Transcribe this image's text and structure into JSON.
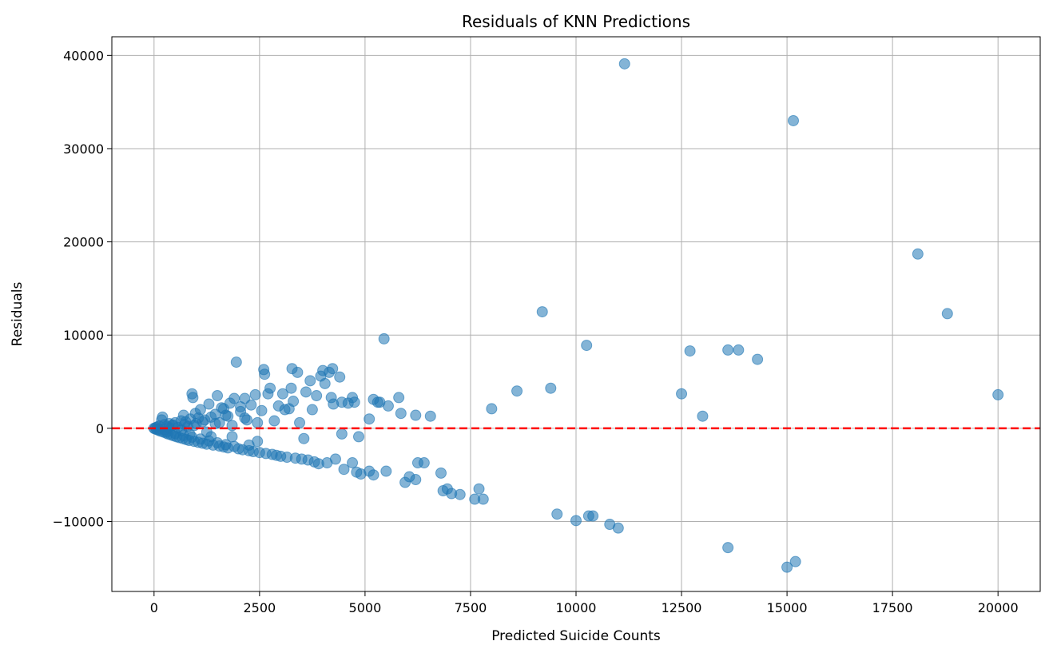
{
  "chart_data": {
    "type": "scatter",
    "title": "Residuals of KNN Predictions",
    "xlabel": "Predicted Suicide Counts",
    "ylabel": "Residuals",
    "xlim": [
      -1000,
      21000
    ],
    "ylim": [
      -17500,
      42000
    ],
    "xticks": [
      0,
      2500,
      5000,
      7500,
      10000,
      12500,
      15000,
      17500,
      20000
    ],
    "yticks": [
      -10000,
      0,
      10000,
      20000,
      30000,
      40000
    ],
    "grid": true,
    "point_color": "#1f77b4",
    "point_opacity": 0.55,
    "reference_line": {
      "y": 0,
      "color": "#ff0000",
      "style": "dashed"
    },
    "points": [
      [
        0,
        0
      ],
      [
        20,
        -50
      ],
      [
        40,
        80
      ],
      [
        60,
        -120
      ],
      [
        80,
        150
      ],
      [
        100,
        -200
      ],
      [
        120,
        250
      ],
      [
        150,
        -300
      ],
      [
        180,
        900
      ],
      [
        200,
        1200
      ],
      [
        220,
        -400
      ],
      [
        250,
        400
      ],
      [
        280,
        -500
      ],
      [
        300,
        200
      ],
      [
        330,
        -600
      ],
      [
        360,
        500
      ],
      [
        400,
        -700
      ],
      [
        430,
        300
      ],
      [
        460,
        -800
      ],
      [
        500,
        600
      ],
      [
        530,
        -900
      ],
      [
        560,
        100
      ],
      [
        600,
        -1000
      ],
      [
        640,
        800
      ],
      [
        680,
        -1100
      ],
      [
        700,
        1400
      ],
      [
        720,
        400
      ],
      [
        760,
        -1200
      ],
      [
        800,
        200
      ],
      [
        830,
        -1300
      ],
      [
        860,
        1000
      ],
      [
        900,
        3700
      ],
      [
        920,
        3300
      ],
      [
        950,
        -1400
      ],
      [
        980,
        1600
      ],
      [
        1000,
        500
      ],
      [
        1050,
        -1500
      ],
      [
        1100,
        2000
      ],
      [
        1150,
        -1600
      ],
      [
        1200,
        900
      ],
      [
        1250,
        -1700
      ],
      [
        1300,
        2600
      ],
      [
        1350,
        1200
      ],
      [
        1400,
        -1800
      ],
      [
        1450,
        500
      ],
      [
        1500,
        3500
      ],
      [
        1550,
        -1900
      ],
      [
        1600,
        2200
      ],
      [
        1650,
        -2000
      ],
      [
        1700,
        1400
      ],
      [
        1750,
        -2100
      ],
      [
        1800,
        2700
      ],
      [
        1850,
        300
      ],
      [
        1900,
        3200
      ],
      [
        1950,
        7100
      ],
      [
        2000,
        -2200
      ],
      [
        2050,
        1800
      ],
      [
        2100,
        -2300
      ],
      [
        2150,
        3200
      ],
      [
        2200,
        900
      ],
      [
        2250,
        -2400
      ],
      [
        2300,
        2500
      ],
      [
        2350,
        -2500
      ],
      [
        2400,
        3600
      ],
      [
        2450,
        600
      ],
      [
        2500,
        -2600
      ],
      [
        2550,
        1900
      ],
      [
        2600,
        6300
      ],
      [
        2620,
        5800
      ],
      [
        2650,
        -2700
      ],
      [
        2700,
        3700
      ],
      [
        2750,
        4300
      ],
      [
        2800,
        -2800
      ],
      [
        2850,
        800
      ],
      [
        2900,
        -2900
      ],
      [
        2950,
        2400
      ],
      [
        3000,
        -3000
      ],
      [
        3050,
        3700
      ],
      [
        3100,
        2000
      ],
      [
        3150,
        -3100
      ],
      [
        3200,
        2100
      ],
      [
        3250,
        4300
      ],
      [
        3270,
        6400
      ],
      [
        3300,
        2900
      ],
      [
        3350,
        -3200
      ],
      [
        3400,
        6000
      ],
      [
        3450,
        600
      ],
      [
        3500,
        -3300
      ],
      [
        3550,
        -1100
      ],
      [
        3600,
        3900
      ],
      [
        3650,
        -3400
      ],
      [
        3700,
        5100
      ],
      [
        3750,
        2000
      ],
      [
        3800,
        -3600
      ],
      [
        3850,
        3500
      ],
      [
        3900,
        -3800
      ],
      [
        3950,
        5600
      ],
      [
        4000,
        6200
      ],
      [
        4050,
        4800
      ],
      [
        4100,
        -3700
      ],
      [
        4150,
        6000
      ],
      [
        4200,
        3300
      ],
      [
        4230,
        6400
      ],
      [
        4250,
        2600
      ],
      [
        4300,
        -3300
      ],
      [
        4400,
        5500
      ],
      [
        4450,
        2800
      ],
      [
        4450,
        -600
      ],
      [
        4500,
        -4400
      ],
      [
        4600,
        2700
      ],
      [
        4700,
        -3700
      ],
      [
        4700,
        3300
      ],
      [
        4750,
        2800
      ],
      [
        4800,
        -4700
      ],
      [
        4850,
        -900
      ],
      [
        4900,
        -4900
      ],
      [
        5100,
        -4600
      ],
      [
        5100,
        1000
      ],
      [
        5200,
        3100
      ],
      [
        5200,
        -5000
      ],
      [
        5300,
        2800
      ],
      [
        5350,
        2800
      ],
      [
        5450,
        9600
      ],
      [
        5500,
        -4600
      ],
      [
        5550,
        2400
      ],
      [
        5800,
        3300
      ],
      [
        5850,
        1600
      ],
      [
        5950,
        -5800
      ],
      [
        6050,
        -5200
      ],
      [
        6200,
        1400
      ],
      [
        6200,
        -5500
      ],
      [
        6250,
        -3700
      ],
      [
        6400,
        -3700
      ],
      [
        6550,
        1300
      ],
      [
        6800,
        -4800
      ],
      [
        6850,
        -6700
      ],
      [
        6950,
        -6500
      ],
      [
        7050,
        -7000
      ],
      [
        7250,
        -7100
      ],
      [
        7600,
        -7600
      ],
      [
        7700,
        -6500
      ],
      [
        7800,
        -7600
      ],
      [
        8000,
        2100
      ],
      [
        8600,
        4000
      ],
      [
        9200,
        12500
      ],
      [
        9400,
        4300
      ],
      [
        9550,
        -9200
      ],
      [
        10000,
        -9900
      ],
      [
        10250,
        8900
      ],
      [
        10300,
        -9400
      ],
      [
        10400,
        -9400
      ],
      [
        10800,
        -10300
      ],
      [
        11000,
        -10700
      ],
      [
        11150,
        39100
      ],
      [
        12500,
        3700
      ],
      [
        12700,
        8300
      ],
      [
        13000,
        1300
      ],
      [
        13600,
        8400
      ],
      [
        13600,
        -12800
      ],
      [
        13850,
        8400
      ],
      [
        14300,
        7400
      ],
      [
        15000,
        -14900
      ],
      [
        15150,
        33000
      ],
      [
        15200,
        -14300
      ],
      [
        18100,
        18700
      ],
      [
        18800,
        12300
      ],
      [
        20000,
        3600
      ],
      [
        100,
        -100
      ],
      [
        300,
        -350
      ],
      [
        500,
        -550
      ],
      [
        700,
        -750
      ],
      [
        900,
        -950
      ],
      [
        1100,
        -1150
      ],
      [
        1300,
        -1350
      ],
      [
        1500,
        -1550
      ],
      [
        1700,
        -1750
      ],
      [
        1900,
        -1950
      ],
      [
        350,
        100
      ],
      [
        650,
        -200
      ],
      [
        950,
        300
      ],
      [
        1250,
        -400
      ],
      [
        1550,
        600
      ],
      [
        1850,
        -900
      ],
      [
        2150,
        1100
      ],
      [
        2450,
        -1400
      ],
      [
        750,
        700
      ],
      [
        1050,
        1100
      ],
      [
        1450,
        1500
      ],
      [
        1650,
        2100
      ],
      [
        2050,
        2300
      ],
      [
        250,
        -150
      ],
      [
        450,
        350
      ],
      [
        850,
        -650
      ],
      [
        1150,
        700
      ],
      [
        1350,
        -900
      ],
      [
        1750,
        1300
      ],
      [
        2250,
        -1800
      ]
    ]
  }
}
